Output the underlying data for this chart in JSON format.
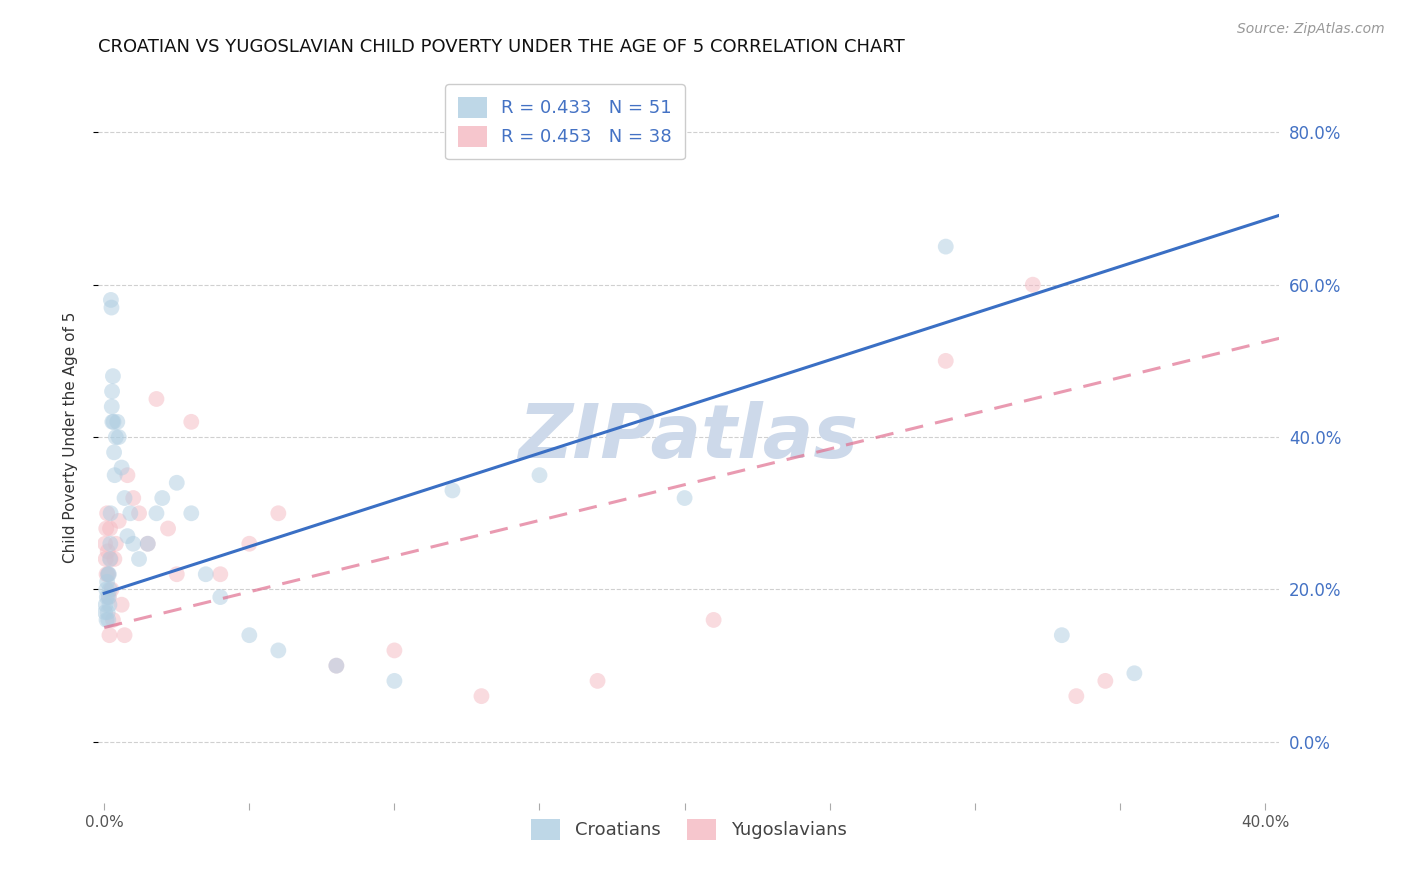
{
  "title": "CROATIAN VS YUGOSLAVIAN CHILD POVERTY UNDER THE AGE OF 5 CORRELATION CHART",
  "source": "Source: ZipAtlas.com",
  "ylabel": "Child Poverty Under the Age of 5",
  "xlim": [
    -0.002,
    0.405
  ],
  "ylim": [
    -0.08,
    0.88
  ],
  "ytick_values": [
    0.0,
    0.2,
    0.4,
    0.6,
    0.8
  ],
  "xtick_values": [
    0.0,
    0.05,
    0.1,
    0.15,
    0.2,
    0.25,
    0.3,
    0.35,
    0.4
  ],
  "xtick_labels": [
    "0.0%",
    "",
    "",
    "",
    "",
    "",
    "",
    "",
    "40.0%"
  ],
  "croatians_color": "#aecde1",
  "yugoslavians_color": "#f4b8c1",
  "trendline_croatians_color": "#3a6fc4",
  "trendline_yugoslavians_color": "#e07090",
  "background_color": "#ffffff",
  "grid_color": "#d0d0d0",
  "legend_R_croatians": "0.433",
  "legend_N_croatians": "51",
  "legend_R_yugoslavians": "0.453",
  "legend_N_yugoslavians": "38",
  "watermark": "ZIPatlas",
  "watermark_color": "#cdd9ea",
  "title_fontsize": 13,
  "axis_label_fontsize": 11,
  "tick_fontsize": 11,
  "legend_fontsize": 13,
  "source_fontsize": 10,
  "marker_size": 130,
  "marker_alpha": 0.5,
  "line_width": 2.2,
  "croatians_x": [
    0.0003,
    0.0005,
    0.0007,
    0.0008,
    0.0009,
    0.001,
    0.0012,
    0.0013,
    0.0014,
    0.0015,
    0.0016,
    0.0018,
    0.0019,
    0.002,
    0.0021,
    0.0022,
    0.0023,
    0.0025,
    0.0026,
    0.0027,
    0.0028,
    0.003,
    0.0032,
    0.0034,
    0.0036,
    0.004,
    0.0045,
    0.005,
    0.006,
    0.007,
    0.008,
    0.009,
    0.01,
    0.012,
    0.015,
    0.018,
    0.02,
    0.025,
    0.03,
    0.035,
    0.04,
    0.05,
    0.06,
    0.08,
    0.1,
    0.12,
    0.15,
    0.2,
    0.29,
    0.33,
    0.355
  ],
  "croatians_y": [
    0.17,
    0.18,
    0.2,
    0.16,
    0.19,
    0.21,
    0.17,
    0.22,
    0.16,
    0.19,
    0.22,
    0.18,
    0.2,
    0.24,
    0.26,
    0.3,
    0.58,
    0.57,
    0.44,
    0.46,
    0.42,
    0.48,
    0.42,
    0.38,
    0.35,
    0.4,
    0.42,
    0.4,
    0.36,
    0.32,
    0.27,
    0.3,
    0.26,
    0.24,
    0.26,
    0.3,
    0.32,
    0.34,
    0.3,
    0.22,
    0.19,
    0.14,
    0.12,
    0.1,
    0.08,
    0.33,
    0.35,
    0.32,
    0.65,
    0.14,
    0.09
  ],
  "yugoslavians_x": [
    0.0003,
    0.0005,
    0.0007,
    0.0008,
    0.001,
    0.0012,
    0.0014,
    0.0016,
    0.0018,
    0.002,
    0.0022,
    0.0025,
    0.003,
    0.0035,
    0.004,
    0.005,
    0.006,
    0.007,
    0.008,
    0.01,
    0.012,
    0.015,
    0.018,
    0.022,
    0.025,
    0.03,
    0.04,
    0.05,
    0.06,
    0.08,
    0.1,
    0.13,
    0.17,
    0.21,
    0.29,
    0.32,
    0.335,
    0.345
  ],
  "yugoslavians_y": [
    0.26,
    0.24,
    0.28,
    0.22,
    0.3,
    0.25,
    0.22,
    0.19,
    0.14,
    0.28,
    0.24,
    0.2,
    0.16,
    0.24,
    0.26,
    0.29,
    0.18,
    0.14,
    0.35,
    0.32,
    0.3,
    0.26,
    0.45,
    0.28,
    0.22,
    0.42,
    0.22,
    0.26,
    0.3,
    0.1,
    0.12,
    0.06,
    0.08,
    0.16,
    0.5,
    0.6,
    0.06,
    0.08
  ]
}
